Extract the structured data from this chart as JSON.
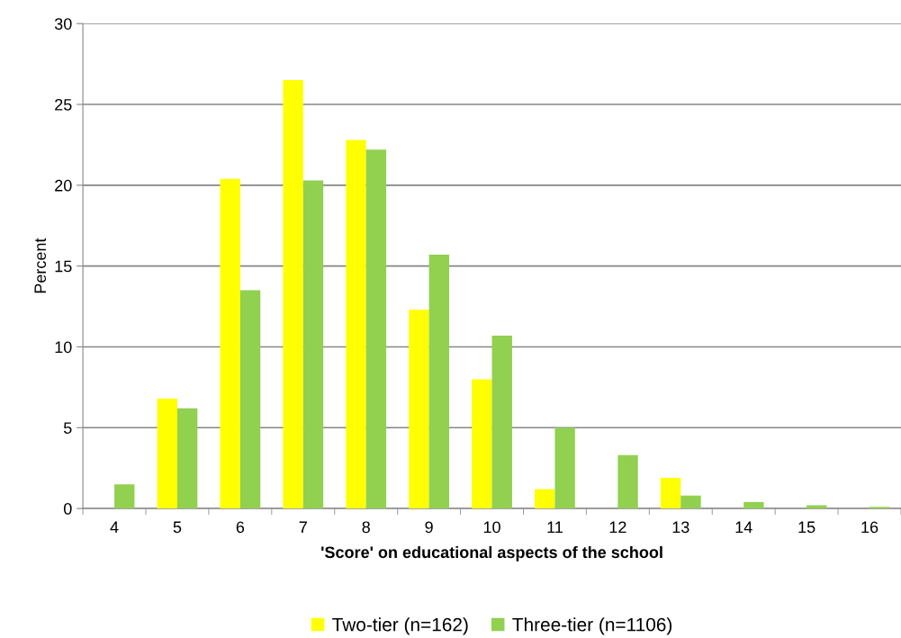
{
  "chart_data": {
    "type": "bar",
    "xlabel": "'Score' on educational aspects of the school",
    "ylabel": "Percent",
    "categories": [
      "4",
      "5",
      "6",
      "7",
      "8",
      "9",
      "10",
      "11",
      "12",
      "13",
      "14",
      "15",
      "16"
    ],
    "series": [
      {
        "name": "Two-tier (n=162)",
        "color": "#ffff00",
        "values": [
          0,
          6.8,
          20.4,
          26.5,
          22.8,
          12.3,
          8.0,
          1.2,
          0,
          1.9,
          0,
          0,
          0
        ]
      },
      {
        "name": "Three-tier (n=1106)",
        "color": "#92d050",
        "values": [
          1.5,
          6.2,
          13.5,
          20.3,
          22.2,
          15.7,
          10.7,
          5.0,
          3.3,
          0.8,
          0.4,
          0.2,
          0.1
        ]
      }
    ],
    "ylim": [
      0,
      30
    ],
    "yticks": [
      0,
      5,
      10,
      15,
      20,
      25,
      30
    ],
    "grid": "y",
    "legend": "bottom"
  }
}
